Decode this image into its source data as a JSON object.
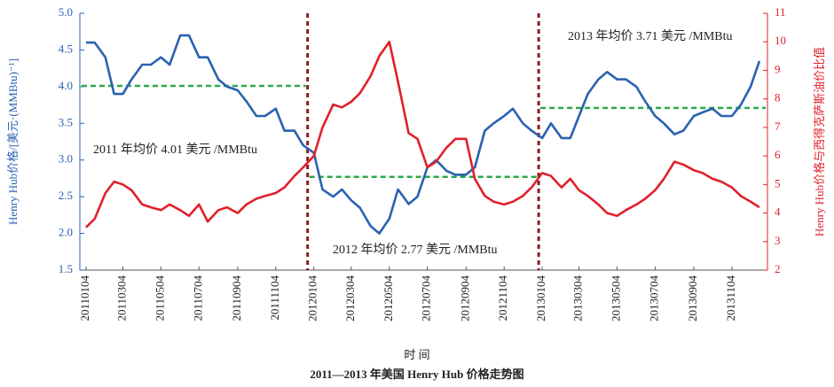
{
  "chart_data": {
    "type": "line",
    "title": "2011—2013 年美国 Henry Hub 价格走势图",
    "xlabel": "时 间",
    "ylabel": "Henry Hub价格/[美元·(MMBtu)⁻¹]",
    "y2label": "Henry Hub价格与西得克萨斯油价比值",
    "x": [
      "20110104",
      "20110118",
      "20110204",
      "20110218",
      "20110304",
      "20110318",
      "20110404",
      "20110418",
      "20110504",
      "20110518",
      "20110604",
      "20110618",
      "20110704",
      "20110718",
      "20110804",
      "20110818",
      "20110904",
      "20110918",
      "20111004",
      "20111018",
      "20111104",
      "20111118",
      "20111204",
      "20111218",
      "20120104",
      "20120118",
      "20120204",
      "20120218",
      "20120304",
      "20120318",
      "20120404",
      "20120418",
      "20120504",
      "20120518",
      "20120604",
      "20120618",
      "20120704",
      "20120718",
      "20120804",
      "20120818",
      "20120904",
      "20120918",
      "20121004",
      "20121018",
      "20121104",
      "20121118",
      "20121204",
      "20121218",
      "20130104",
      "20130118",
      "20130204",
      "20130218",
      "20130304",
      "20130318",
      "20130404",
      "20130418",
      "20130504",
      "20130518",
      "20130604",
      "20130618",
      "20130704",
      "20130718",
      "20130804",
      "20130818",
      "20130904",
      "20130918",
      "20131004",
      "20131018",
      "20131104",
      "20131118",
      "20131204",
      "20131218"
    ],
    "series": [
      {
        "name": "Henry Hub价格",
        "color": "#2a62b0",
        "axis": "y",
        "values": [
          4.6,
          4.6,
          4.4,
          3.9,
          3.9,
          4.1,
          4.3,
          4.3,
          4.4,
          4.3,
          4.7,
          4.7,
          4.4,
          4.4,
          4.1,
          4.0,
          3.95,
          3.8,
          3.6,
          3.6,
          3.7,
          3.4,
          3.4,
          3.2,
          3.1,
          2.6,
          2.5,
          2.6,
          2.45,
          2.35,
          2.1,
          2.0,
          2.2,
          2.6,
          2.4,
          2.5,
          2.9,
          3.0,
          2.85,
          2.8,
          2.8,
          2.9,
          3.4,
          3.5,
          3.6,
          3.7,
          3.5,
          3.4,
          3.3,
          3.5,
          3.3,
          3.3,
          3.6,
          3.9,
          4.1,
          4.2,
          4.1,
          4.1,
          4.0,
          3.8,
          3.6,
          3.5,
          3.35,
          3.4,
          3.6,
          3.65,
          3.7,
          3.6,
          3.6,
          3.75,
          4.0,
          4.35
        ]
      },
      {
        "name": "Henry Hub价格与西得克萨斯油价比值",
        "color": "#e0202a",
        "axis": "y2",
        "values": [
          3.5,
          3.8,
          4.7,
          5.1,
          5.0,
          4.8,
          4.3,
          4.2,
          4.1,
          4.3,
          4.1,
          3.9,
          4.3,
          3.7,
          4.1,
          4.2,
          4.0,
          4.3,
          4.5,
          4.6,
          4.7,
          4.9,
          5.3,
          5.6,
          6.0,
          7.0,
          7.8,
          7.7,
          7.9,
          8.2,
          8.8,
          9.5,
          10.0,
          8.6,
          6.8,
          6.6,
          5.6,
          5.8,
          6.3,
          6.6,
          6.6,
          5.2,
          4.6,
          4.4,
          4.3,
          4.4,
          4.6,
          4.9,
          5.4,
          5.3,
          4.9,
          5.2,
          4.8,
          4.6,
          4.3,
          4.0,
          3.9,
          4.1,
          4.3,
          4.5,
          4.8,
          5.2,
          5.8,
          5.7,
          5.5,
          5.4,
          5.2,
          5.1,
          4.9,
          4.6,
          4.4,
          4.2
        ]
      }
    ],
    "averages": [
      {
        "label": "2011 年均价 4.01 美元 /MMBtu",
        "value": 4.01
      },
      {
        "label": "2012 年均价 2.77 美元 /MMBtu",
        "value": 2.77
      },
      {
        "label": "2013 年均价 3.71 美元 /MMBtu",
        "value": 3.71
      }
    ],
    "average_color": "#2aa84a",
    "divider_color": "#8b1a1a",
    "xlim": [
      "20110104",
      "20131231"
    ],
    "xticks": [
      "20110104",
      "20110304",
      "20110504",
      "20110704",
      "20110904",
      "20111104",
      "20120104",
      "20120304",
      "20120504",
      "20120704",
      "20120904",
      "20121104",
      "20130104",
      "20130304",
      "20130504",
      "20130704",
      "20130904",
      "20131104"
    ],
    "ylim": [
      1.5,
      5.0
    ],
    "yticks": [
      1.5,
      {
        "value": 2,
        "label": "2.0"
      },
      2.5,
      {
        "value": 3,
        "label": "3.0"
      },
      3.5,
      {
        "value": 4,
        "label": "4.0"
      },
      4.5,
      {
        "value": 5,
        "label": "5.0"
      }
    ],
    "y2lim": [
      2,
      11
    ],
    "y2ticks": [
      2,
      3,
      4,
      5,
      6,
      7,
      8,
      9,
      10,
      11
    ]
  }
}
